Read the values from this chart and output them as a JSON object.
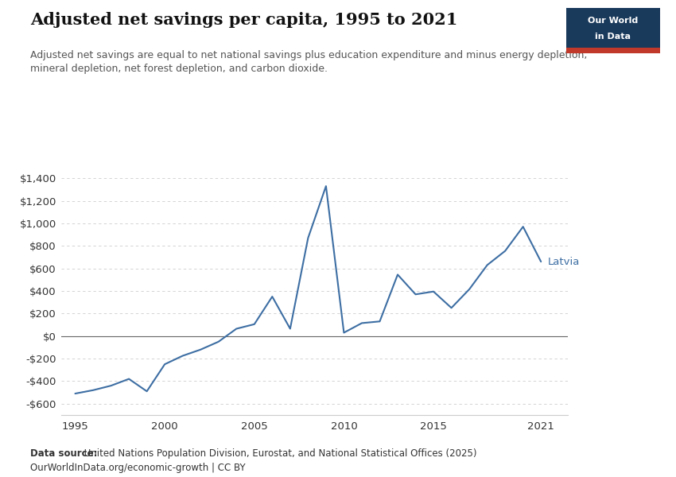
{
  "title": "Adjusted net savings per capita, 1995 to 2021",
  "subtitle": "Adjusted net savings are equal to net national savings plus education expenditure and minus energy depletion,\nmineral depletion, net forest depletion, and carbon dioxide.",
  "source_bold": "Data source:",
  "source_normal": " United Nations Population Division, Eurostat, and National Statistical Offices (2025)",
  "source_line2": "OurWorldInData.org/economic-growth | CC BY",
  "line_label": "Latvia",
  "line_color": "#3d6ea3",
  "years": [
    1995,
    1996,
    1997,
    1998,
    1999,
    2000,
    2001,
    2002,
    2003,
    2004,
    2005,
    2006,
    2007,
    2008,
    2009,
    2010,
    2011,
    2012,
    2013,
    2014,
    2015,
    2016,
    2017,
    2018,
    2019,
    2020,
    2021
  ],
  "values": [
    -510,
    -480,
    -440,
    -380,
    -490,
    -250,
    -175,
    -120,
    -50,
    65,
    105,
    350,
    65,
    870,
    1330,
    30,
    115,
    130,
    545,
    370,
    395,
    250,
    415,
    630,
    755,
    970,
    660
  ],
  "ylim": [
    -700,
    1500
  ],
  "yticks": [
    -600,
    -400,
    -200,
    0,
    200,
    400,
    600,
    800,
    1000,
    1200,
    1400
  ],
  "xticks": [
    1995,
    2000,
    2005,
    2010,
    2015,
    2021
  ],
  "xlim_left": 1994.2,
  "xlim_right": 2022.5,
  "background_color": "#ffffff",
  "grid_color": "#cccccc",
  "owid_box_bg": "#1a3a5c",
  "owid_accent": "#c0392b",
  "zero_line_color": "#666666",
  "spine_color": "#cccccc"
}
